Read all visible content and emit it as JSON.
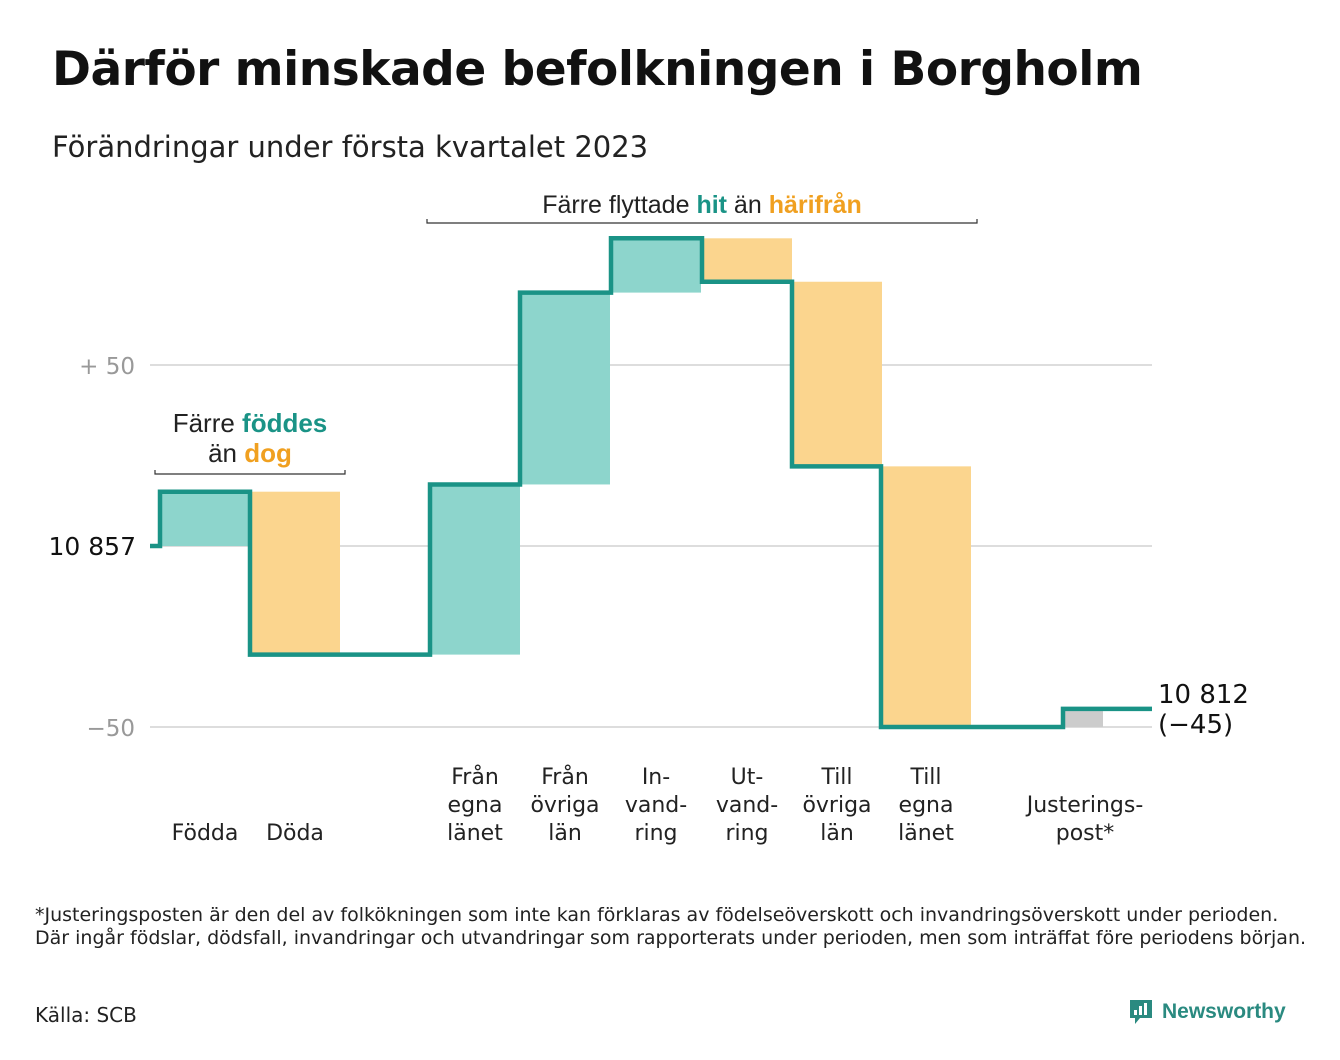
{
  "title": "Därför minskade befolkningen i Borgholm",
  "subtitle": "Förändringar under första kvartalet 2023",
  "annotations": {
    "births": {
      "line1_pre": "Färre ",
      "line1_hl": "föddes",
      "line2_pre": "än ",
      "line2_hl": "dog"
    },
    "migration": {
      "pre": "Färre flyttade ",
      "hl1": "hit",
      "mid": " än ",
      "hl2": "härifrån"
    }
  },
  "footnote": "*Justeringsposten är den del av folkökningen som inte kan förklaras av födelseöverskott och invandringsöverskott under perioden. Där ingår födslar, dödsfall, invandringar och utvandringar som rapporterats under perioden, men som inträffat före periodens början.",
  "source": "Källa: SCB",
  "brand": "Newsworthy",
  "colors": {
    "positive": "#8dd5cc",
    "negative": "#fbd58e",
    "adjustment": "#cccccc",
    "line": "#1a9386",
    "grid": "#dddddd",
    "axis_text": "#999999"
  },
  "chart_data": {
    "type": "waterfall",
    "baseline": 10857,
    "ylim": [
      -52,
      85
    ],
    "yticks": [
      {
        "value": 50,
        "label": "+ 50",
        "emphasis": false
      },
      {
        "value": 0,
        "label": "10 857",
        "emphasis": true
      },
      {
        "value": -50,
        "label": "−50",
        "emphasis": false
      }
    ],
    "categories": [
      {
        "lines": [
          "Födda"
        ],
        "value": 15,
        "kind": "positive"
      },
      {
        "lines": [
          "Döda"
        ],
        "value": -45,
        "kind": "negative"
      },
      {
        "lines": [
          "Från",
          "egna",
          "länet"
        ],
        "value": 47,
        "kind": "positive"
      },
      {
        "lines": [
          "Från",
          "övriga",
          "län"
        ],
        "value": 53,
        "kind": "positive"
      },
      {
        "lines": [
          "In-",
          "vand-",
          "ring"
        ],
        "value": 15,
        "kind": "positive"
      },
      {
        "lines": [
          "Ut-",
          "vand-",
          "ring"
        ],
        "value": -12,
        "kind": "negative"
      },
      {
        "lines": [
          "Till",
          "övriga",
          "län"
        ],
        "value": -51,
        "kind": "negative"
      },
      {
        "lines": [
          "Till",
          "egna",
          "länet"
        ],
        "value": -72,
        "kind": "negative"
      },
      {
        "lines": [
          "Justerings-",
          "post*"
        ],
        "value": 5,
        "kind": "adjustment"
      }
    ],
    "end_value": {
      "total": "10 812",
      "change": "(−45)"
    }
  }
}
